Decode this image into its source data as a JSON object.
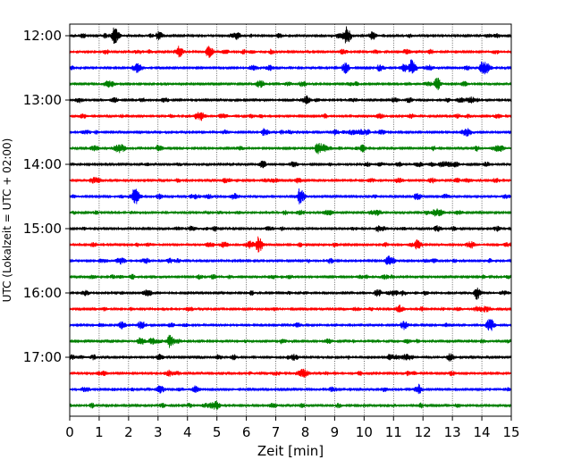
{
  "chart_data": {
    "type": "line",
    "title": "",
    "xlabel": "Zeit  [min]",
    "ylabel": "UTC (Lokalzeit = UTC + 02:00)",
    "xlim": [
      0,
      15
    ],
    "x_ticks": [
      0,
      1,
      2,
      3,
      4,
      5,
      6,
      7,
      8,
      9,
      10,
      11,
      12,
      13,
      14,
      15
    ],
    "y_tick_labels": [
      "12:00",
      "13:00",
      "14:00",
      "15:00",
      "16:00",
      "17:00"
    ],
    "trace_interval_minutes": 15,
    "grid": "vertical dotted lines at each minute",
    "trace_colors": [
      "#000000",
      "#ff0000",
      "#0000ff",
      "#008000"
    ],
    "traces": [
      {
        "start": "12:00",
        "events": [
          {
            "t": 1.5,
            "amp": 1.0
          },
          {
            "t": 3.0,
            "amp": 0.5
          },
          {
            "t": 9.4,
            "amp": 0.8
          }
        ]
      },
      {
        "start": "12:15",
        "events": [
          {
            "t": 3.7,
            "amp": 0.6
          },
          {
            "t": 4.7,
            "amp": 0.7
          }
        ]
      },
      {
        "start": "12:30",
        "events": [
          {
            "t": 2.3,
            "amp": 0.5
          },
          {
            "t": 10.5,
            "amp": 0.4
          },
          {
            "t": 11.6,
            "amp": 0.9
          },
          {
            "t": 14.0,
            "amp": 0.8
          }
        ]
      },
      {
        "start": "12:45",
        "events": []
      },
      {
        "start": "13:00",
        "events": [
          {
            "t": 11.0,
            "amp": 0.3
          }
        ]
      },
      {
        "start": "13:15",
        "events": [
          {
            "t": 13.5,
            "amp": 0.25
          }
        ]
      },
      {
        "start": "13:30",
        "events": [
          {
            "t": 9.0,
            "amp": 0.3
          }
        ]
      },
      {
        "start": "13:45",
        "events": [
          {
            "t": 3.0,
            "amp": 0.4
          },
          {
            "t": 8.4,
            "amp": 0.6
          }
        ]
      },
      {
        "start": "14:00",
        "events": [
          {
            "t": 12.6,
            "amp": 0.3
          }
        ]
      },
      {
        "start": "14:15",
        "events": []
      },
      {
        "start": "14:30",
        "events": [
          {
            "t": 2.2,
            "amp": 1.2
          },
          {
            "t": 7.8,
            "amp": 1.0
          }
        ]
      },
      {
        "start": "14:45",
        "events": [
          {
            "t": 10.2,
            "amp": 0.25
          }
        ]
      },
      {
        "start": "15:00",
        "events": [
          {
            "t": 12.5,
            "amp": 0.25
          }
        ]
      },
      {
        "start": "15:15",
        "events": [
          {
            "t": 6.4,
            "amp": 0.9
          },
          {
            "t": 11.8,
            "amp": 0.5
          }
        ]
      },
      {
        "start": "15:30",
        "events": [
          {
            "t": 10.8,
            "amp": 0.3
          }
        ]
      },
      {
        "start": "15:45",
        "events": [
          {
            "t": 5.4,
            "amp": 0.2
          }
        ]
      },
      {
        "start": "16:00",
        "events": [
          {
            "t": 13.8,
            "amp": 0.8
          },
          {
            "t": 11.3,
            "amp": 0.3
          }
        ]
      },
      {
        "start": "16:15",
        "events": [
          {
            "t": 14.2,
            "amp": 0.2
          }
        ]
      },
      {
        "start": "16:30",
        "events": [
          {
            "t": 14.2,
            "amp": 0.25
          }
        ]
      },
      {
        "start": "16:45",
        "events": [
          {
            "t": 3.4,
            "amp": 0.6
          },
          {
            "t": 7.2,
            "amp": 0.3
          }
        ]
      },
      {
        "start": "17:00",
        "events": [
          {
            "t": 7.6,
            "amp": 0.4
          },
          {
            "t": 12.9,
            "amp": 0.3
          }
        ]
      },
      {
        "start": "17:15",
        "events": []
      },
      {
        "start": "17:30",
        "events": [
          {
            "t": 3.0,
            "amp": 0.2
          }
        ]
      },
      {
        "start": "17:45",
        "events": [
          {
            "t": 9.1,
            "amp": 0.25
          }
        ]
      }
    ]
  }
}
